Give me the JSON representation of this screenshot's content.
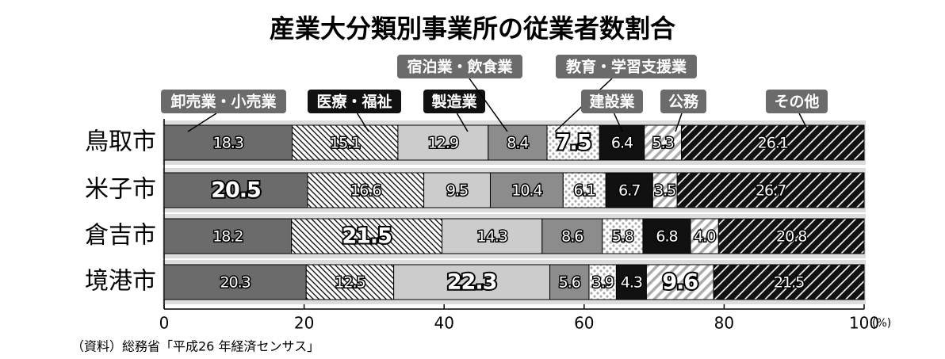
{
  "chart_data": {
    "type": "stacked-bar-horizontal",
    "title": "産業大分類別事業所の従業者数割合",
    "categories": [
      "鳥取市",
      "米子市",
      "倉吉市",
      "境港市"
    ],
    "series": [
      {
        "name": "卸売業・小売業",
        "color": "#6b6b6b",
        "values": [
          18.3,
          20.5,
          18.2,
          20.3
        ]
      },
      {
        "name": "医療・福祉",
        "color": "#ffffff",
        "pattern": "hatch",
        "values": [
          15.1,
          16.6,
          21.5,
          12.5
        ]
      },
      {
        "name": "製造業",
        "color": "#cccccc",
        "values": [
          12.9,
          9.5,
          14.3,
          22.3
        ]
      },
      {
        "name": "宿泊業・飲食業",
        "color": "#8c8c8c",
        "values": [
          8.4,
          10.4,
          8.6,
          5.6
        ]
      },
      {
        "name": "教育・学習支援業",
        "color": "#ffffff",
        "pattern": "dots",
        "values": [
          7.5,
          6.1,
          5.8,
          3.9
        ]
      },
      {
        "name": "建設業",
        "color": "#111111",
        "values": [
          6.4,
          6.7,
          6.8,
          4.3
        ]
      },
      {
        "name": "公務",
        "color": "#ffffff",
        "pattern": "stripes",
        "values": [
          5.3,
          3.5,
          4.0,
          9.6
        ],
        "value_labels": [
          "5.3",
          "3.5",
          "4.0",
          "9.6"
        ]
      },
      {
        "name": "その他",
        "color": "#111111",
        "pattern": "stripes-dark",
        "values": [
          26.1,
          26.7,
          20.8,
          21.5
        ]
      }
    ],
    "xlim": [
      0,
      100
    ],
    "xticks": [
      0,
      20,
      40,
      60,
      80,
      100
    ],
    "x_unit": "(%)",
    "source": "（資料）総務省「平成26 年経済センサス」"
  }
}
